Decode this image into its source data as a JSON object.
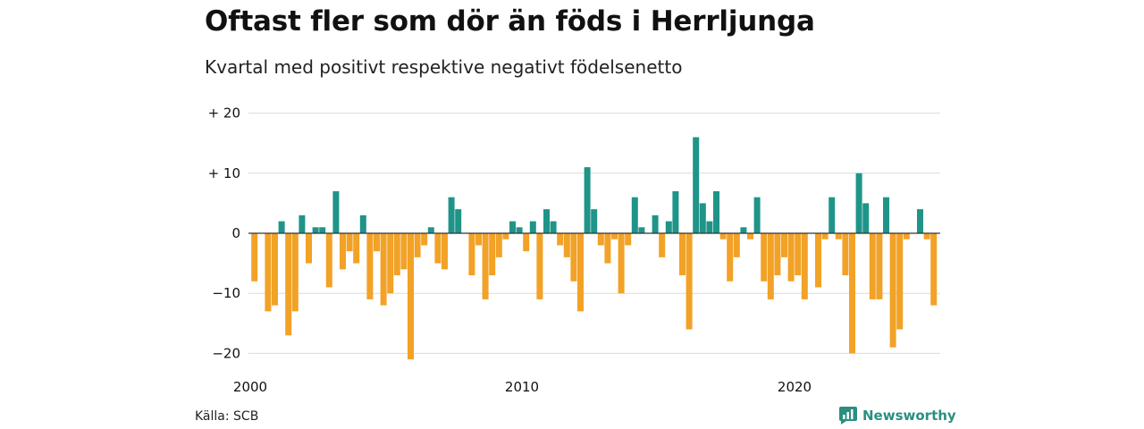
{
  "header": {
    "title": "Oftast fler som dör än föds i Herrljunga",
    "subtitle": "Kvartal med positivt respektive negativt födelsenetto"
  },
  "footer": {
    "source": "Källa: SCB",
    "brand": "Newsworthy"
  },
  "colors": {
    "positive": "#1f9488",
    "negative": "#f2a227",
    "grid": "#dcdcdc",
    "brand": "#2a8f80"
  },
  "chart_data": {
    "type": "bar",
    "title": "Oftast fler som dör än föds i Herrljunga",
    "subtitle": "Kvartal med positivt respektive negativt födelsenetto",
    "x_start": "2000 Q1",
    "x_tick_labels": [
      "2000",
      "2010",
      "2020"
    ],
    "y_ticks": [
      20,
      10,
      0,
      -10,
      -20
    ],
    "y_tick_labels": [
      "+ 20",
      "+ 10",
      "0",
      "−10",
      "−20"
    ],
    "ylim": [
      -22,
      20
    ],
    "grid": true,
    "values": [
      -8,
      0,
      -13,
      -12,
      2,
      -17,
      -13,
      3,
      -5,
      1,
      1,
      -9,
      7,
      -6,
      -3,
      -5,
      3,
      -11,
      -3,
      -12,
      -10,
      -7,
      -6,
      -21,
      -4,
      -2,
      1,
      -5,
      -6,
      6,
      4,
      0,
      -7,
      -2,
      -11,
      -7,
      -4,
      -1,
      2,
      1,
      -3,
      2,
      -11,
      4,
      2,
      -2,
      -4,
      -8,
      -13,
      11,
      4,
      -2,
      -5,
      -1,
      -10,
      -2,
      6,
      1,
      0,
      3,
      -4,
      2,
      7,
      -7,
      -16,
      16,
      5,
      2,
      7,
      -1,
      -8,
      -4,
      1,
      -1,
      6,
      -8,
      -11,
      -7,
      -4,
      -8,
      -7,
      -11,
      0,
      -9,
      -1,
      6,
      -1,
      -7,
      -20,
      10,
      5,
      -11,
      -11,
      6,
      -19,
      -16,
      -1,
      0,
      4,
      -1,
      -12
    ]
  }
}
